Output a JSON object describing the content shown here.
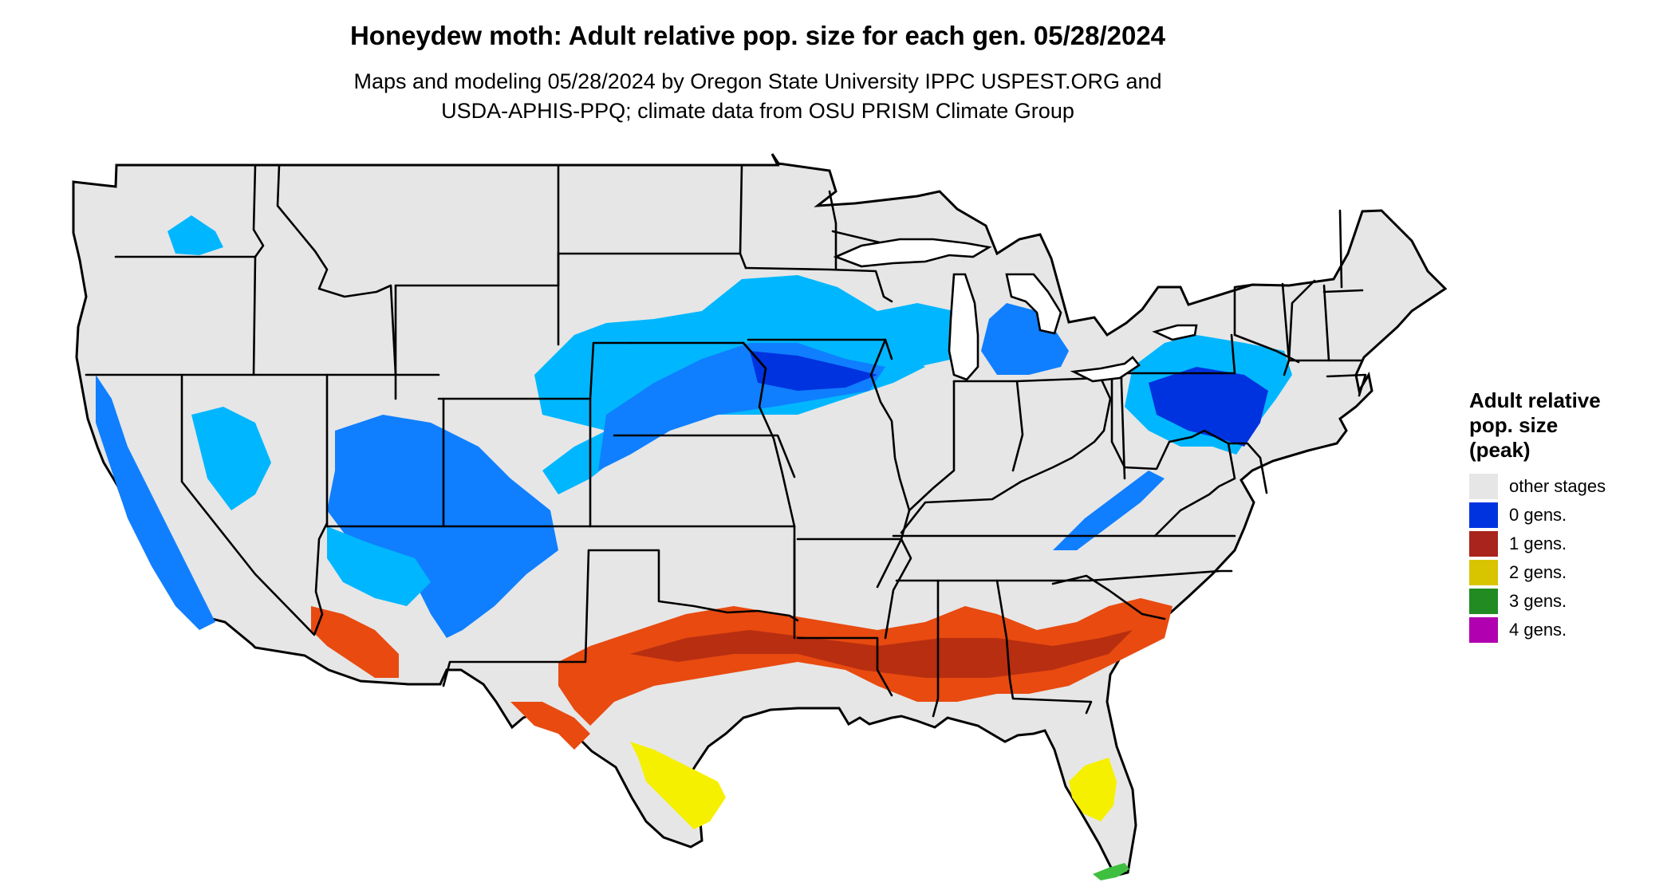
{
  "title": "Honeydew moth: Adult relative pop. size for each gen. 05/28/2024",
  "subtitle": {
    "line1": "Maps and modeling 05/28/2024 by Oregon State University IPPC USPEST.ORG and",
    "line2": "USDA-APHIS-PPQ; climate data from OSU PRISM Climate Group"
  },
  "legend": {
    "title_lines": [
      "Adult relative",
      "pop. size",
      "(peak)"
    ],
    "items": [
      {
        "label": "other stages",
        "color": "#e6e6e6"
      },
      {
        "label": "0 gens.",
        "color": "#0033e0"
      },
      {
        "label": "1 gens.",
        "color": "#a8241c"
      },
      {
        "label": "2 gens.",
        "color": "#d9c400"
      },
      {
        "label": "3 gens.",
        "color": "#228b22"
      },
      {
        "label": "4 gens.",
        "color": "#b000b0"
      }
    ]
  },
  "map": {
    "land_color": "#e6e6e6",
    "border_color": "#000000",
    "zone_colors": {
      "gen0_light": "#00b7ff",
      "gen0_mid": "#0f7fff",
      "gen0_dark": "#0033e0",
      "gen1": "#e84a10",
      "gen1_dark": "#b82e10",
      "gen2": "#f5f000",
      "gen3": "#3fbf3f"
    }
  }
}
